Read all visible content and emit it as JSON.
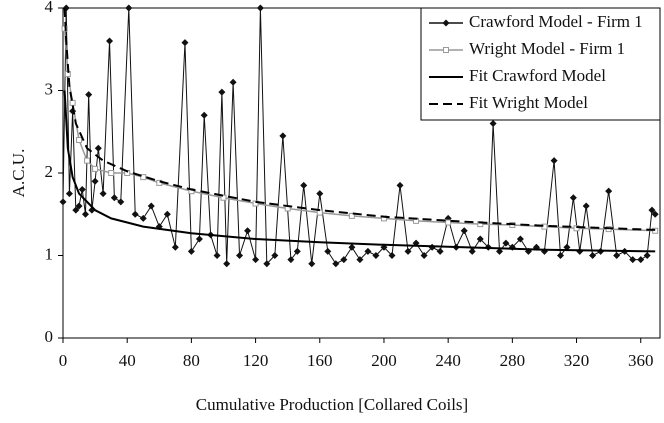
{
  "chart_data": {
    "type": "line",
    "x_label": "Cumulative Production [Collared Coils]",
    "y_label": "A.C.U.",
    "xlim": [
      0,
      372
    ],
    "ylim": [
      0,
      4
    ],
    "xticks": [
      0,
      40,
      80,
      120,
      160,
      200,
      240,
      280,
      320,
      360
    ],
    "yticks": [
      0,
      1,
      2,
      3,
      4
    ],
    "legend": "upper right",
    "series": [
      {
        "name": "Crawford Model - Firm 1",
        "color": "#111111",
        "marker": "diamond",
        "dash": false,
        "x": [
          0,
          2,
          4,
          6,
          8,
          10,
          12,
          14,
          16,
          18,
          20,
          22,
          25,
          29,
          32,
          36,
          41,
          45,
          50,
          55,
          60,
          65,
          70,
          76,
          80,
          85,
          88,
          92,
          96,
          99,
          102,
          106,
          110,
          115,
          120,
          123,
          127,
          132,
          137,
          142,
          146,
          150,
          155,
          160,
          165,
          170,
          175,
          180,
          185,
          190,
          195,
          200,
          205,
          210,
          215,
          220,
          225,
          230,
          235,
          240,
          245,
          250,
          255,
          260,
          265,
          268,
          272,
          276,
          280,
          285,
          290,
          295,
          300,
          306,
          310,
          314,
          318,
          322,
          326,
          330,
          335,
          340,
          345,
          350,
          355,
          360,
          364,
          367,
          369
        ],
        "values": [
          1.65,
          4.0,
          1.75,
          2.75,
          1.55,
          1.6,
          1.8,
          1.5,
          2.95,
          1.55,
          1.9,
          2.3,
          1.75,
          3.6,
          1.7,
          1.65,
          4.0,
          1.5,
          1.45,
          1.6,
          1.35,
          1.5,
          1.1,
          3.58,
          1.05,
          1.2,
          2.7,
          1.25,
          1.0,
          2.98,
          0.9,
          3.1,
          1.0,
          1.3,
          0.95,
          4.0,
          0.9,
          1.0,
          2.45,
          0.95,
          1.05,
          1.85,
          0.9,
          1.75,
          1.05,
          0.9,
          0.95,
          1.1,
          0.95,
          1.05,
          1.0,
          1.1,
          1.0,
          1.85,
          1.05,
          1.15,
          1.0,
          1.1,
          1.05,
          1.45,
          1.1,
          1.3,
          1.05,
          1.2,
          1.1,
          2.6,
          1.05,
          1.15,
          1.1,
          1.2,
          1.05,
          1.1,
          1.05,
          2.15,
          1.0,
          1.1,
          1.7,
          1.05,
          1.6,
          1.0,
          1.05,
          1.78,
          1.0,
          1.05,
          0.95,
          0.95,
          1.0,
          1.55,
          1.5
        ]
      },
      {
        "name": "Wright Model - Firm 1",
        "color": "#999999",
        "marker": "square",
        "dash": false,
        "x": [
          1,
          3,
          6,
          10,
          15,
          20,
          30,
          40,
          50,
          60,
          80,
          100,
          120,
          140,
          160,
          180,
          200,
          220,
          240,
          260,
          280,
          300,
          320,
          340,
          369
        ],
        "values": [
          3.75,
          3.2,
          2.85,
          2.4,
          2.15,
          2.05,
          2.0,
          2.0,
          1.95,
          1.88,
          1.78,
          1.7,
          1.63,
          1.57,
          1.52,
          1.48,
          1.45,
          1.42,
          1.4,
          1.38,
          1.37,
          1.35,
          1.33,
          1.32,
          1.3
        ]
      },
      {
        "name": "Fit Crawford Model",
        "color": "#000000",
        "marker": "none",
        "dash": false,
        "x": [
          1,
          3,
          6,
          10,
          20,
          30,
          50,
          80,
          120,
          160,
          200,
          250,
          300,
          369
        ],
        "values": [
          3.0,
          2.3,
          1.95,
          1.75,
          1.55,
          1.45,
          1.35,
          1.27,
          1.2,
          1.16,
          1.13,
          1.1,
          1.07,
          1.05
        ]
      },
      {
        "name": "Fit Wright Model",
        "color": "#000000",
        "marker": "none",
        "dash": true,
        "x": [
          1,
          2,
          4,
          8,
          15,
          25,
          40,
          60,
          80,
          120,
          160,
          200,
          250,
          300,
          369
        ],
        "values": [
          4.0,
          3.6,
          3.05,
          2.6,
          2.3,
          2.15,
          2.02,
          1.9,
          1.8,
          1.65,
          1.55,
          1.47,
          1.41,
          1.36,
          1.31
        ]
      }
    ]
  }
}
